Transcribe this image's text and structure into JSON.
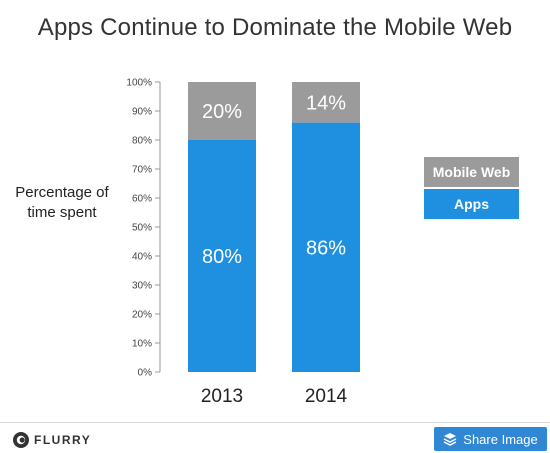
{
  "chart_data": {
    "type": "bar",
    "stacked": true,
    "title": "Apps Continue to Dominate the Mobile Web",
    "ylabel": "Percentage of time spent",
    "categories": [
      "2013",
      "2014"
    ],
    "series": [
      {
        "name": "Apps",
        "values": [
          80,
          86
        ],
        "labels": [
          "80%",
          "86%"
        ],
        "color": "#1f8fe0"
      },
      {
        "name": "Mobile Web",
        "values": [
          20,
          14
        ],
        "labels": [
          "20%",
          "14%"
        ],
        "color": "#9b9b9b"
      }
    ],
    "ylim": [
      0,
      100
    ],
    "yticks": [
      "0%",
      "10%",
      "20%",
      "30%",
      "40%",
      "50%",
      "60%",
      "70%",
      "80%",
      "90%",
      "100%"
    ],
    "legend_position": "right",
    "grid": false
  },
  "footer": {
    "brand": "FLURRY",
    "share_label": "Share Image",
    "icons": {
      "brand": "flurry-logo-icon",
      "share": "layers-icon"
    }
  }
}
